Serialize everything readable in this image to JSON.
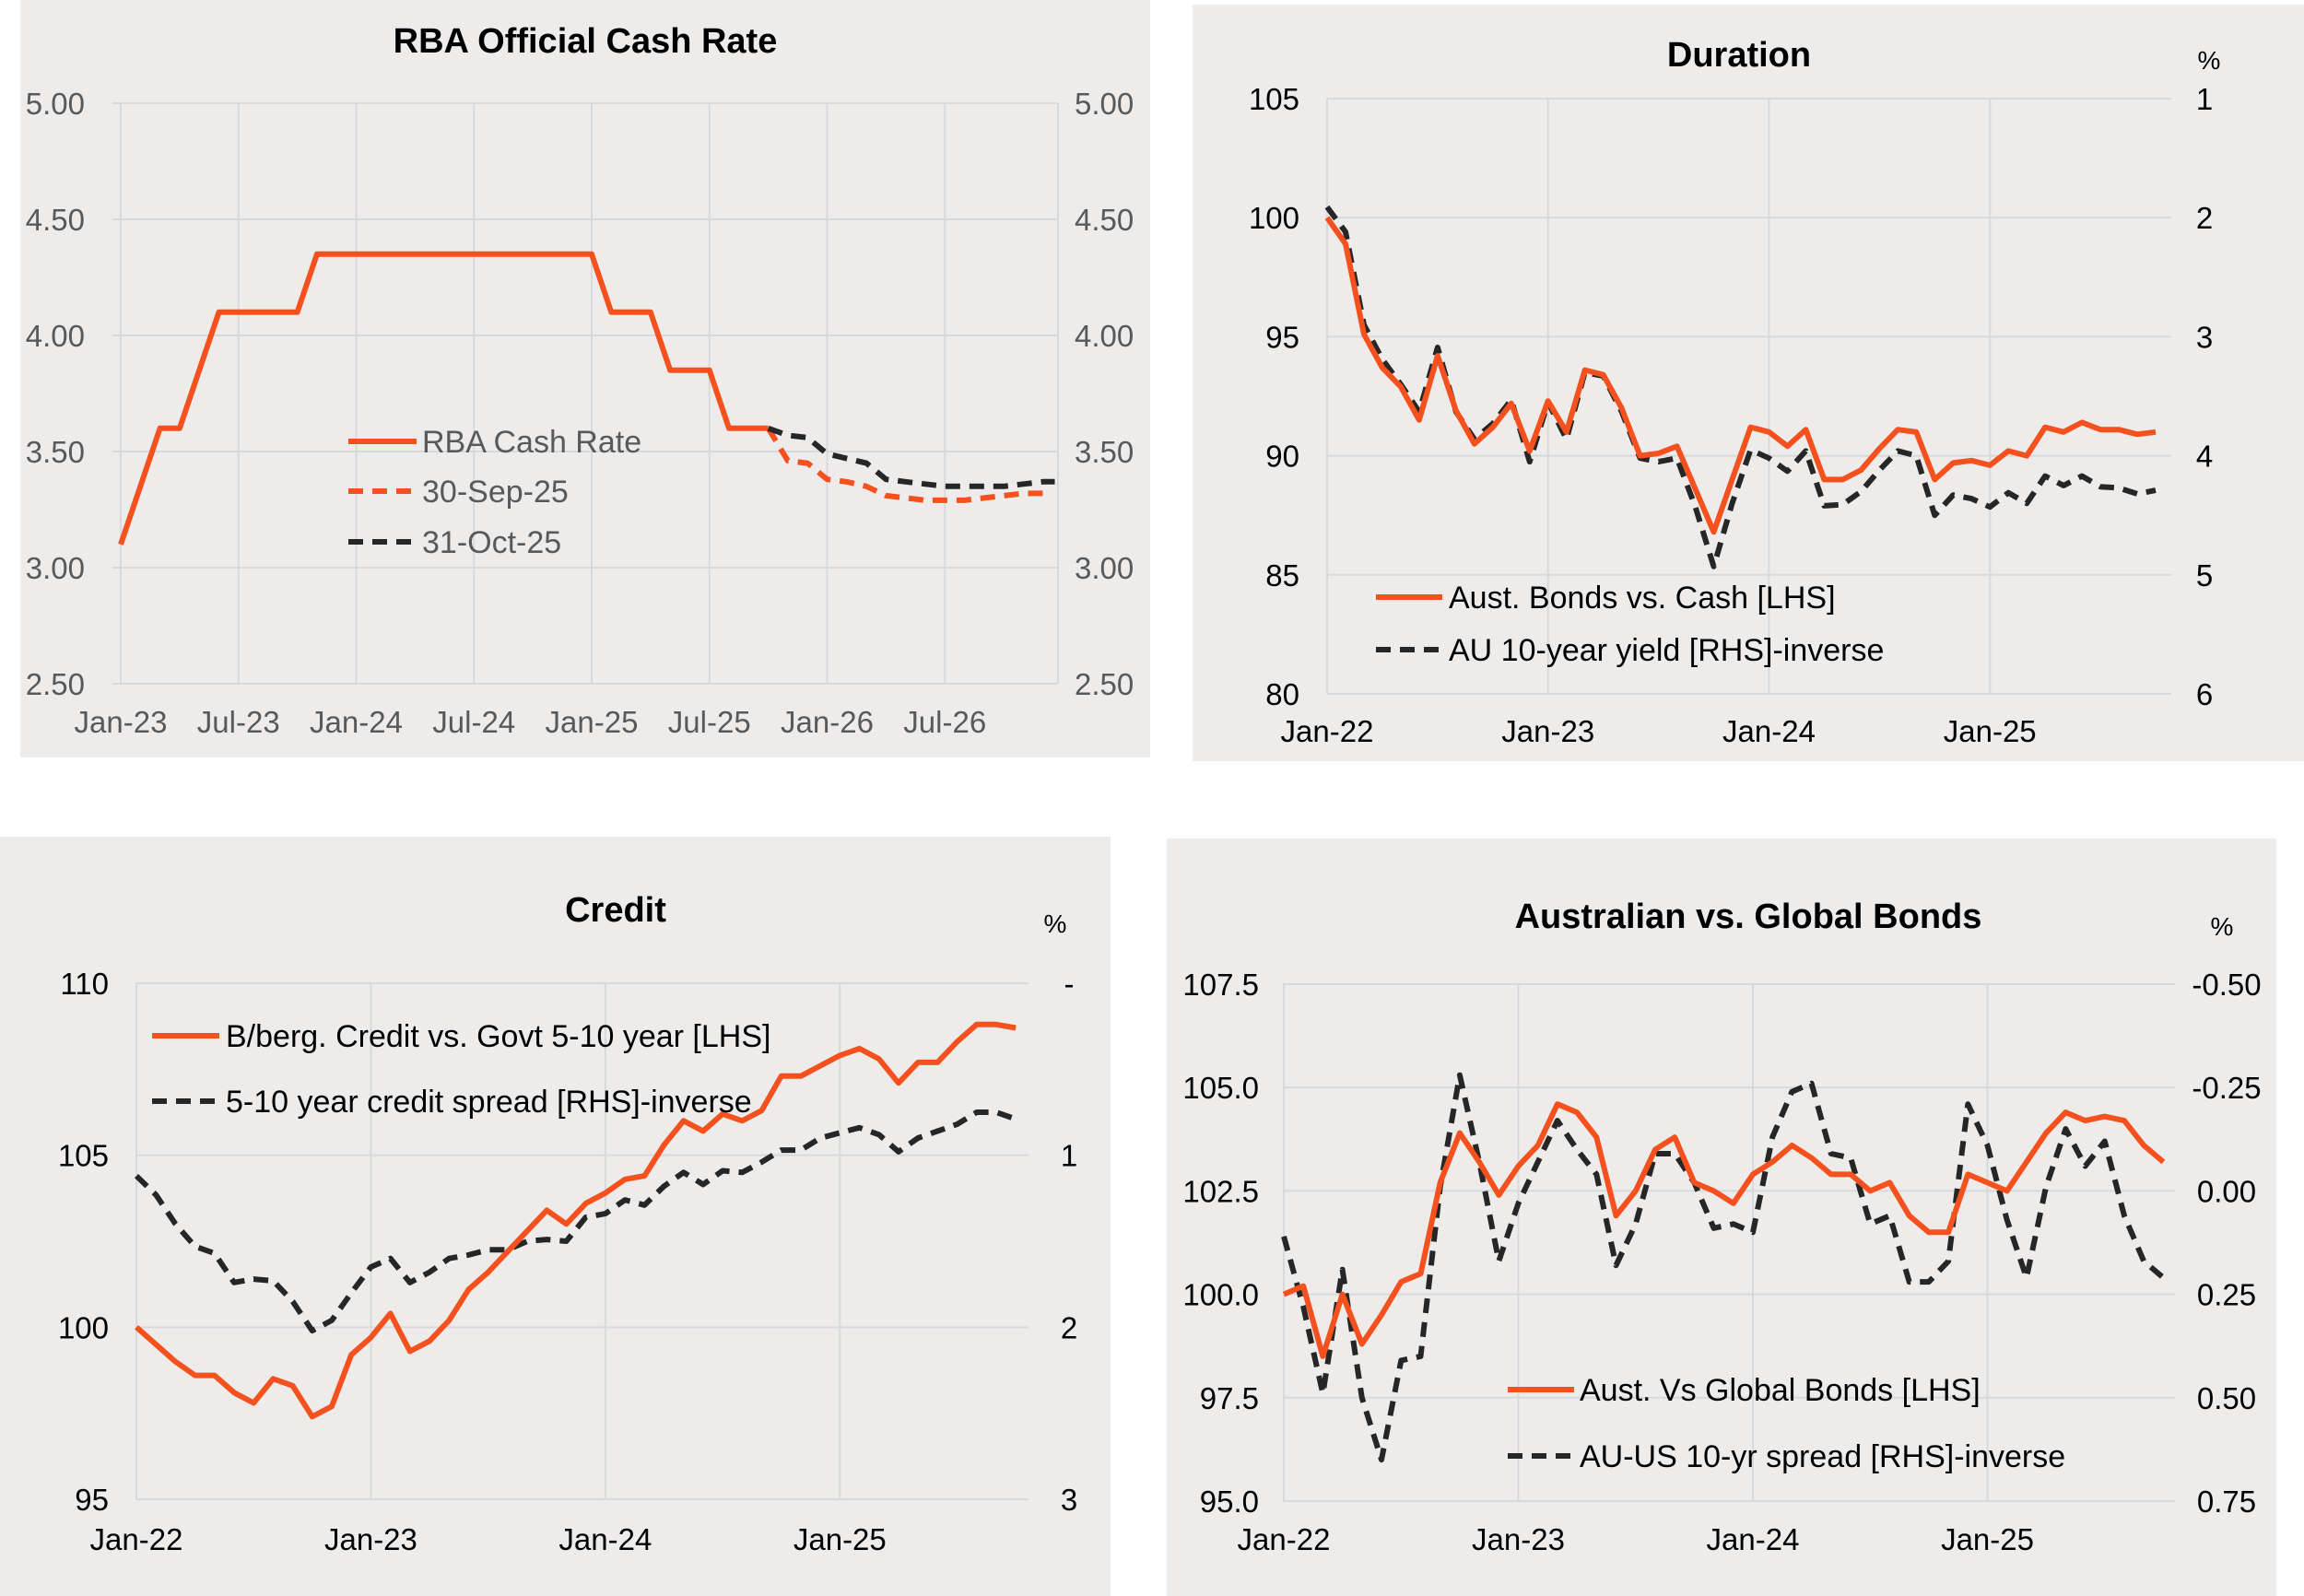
{
  "colors": {
    "orange": "#f4511e",
    "black": "#262626",
    "panel_bg": "#eeeceb",
    "grid": "#d9d9d9"
  },
  "chart_data": [
    {
      "id": "rba",
      "type": "line",
      "title": "RBA Official Cash Rate",
      "xlabel": "",
      "ylabel": "",
      "x_ticks": [
        "Jan-23",
        "Jul-23",
        "Jan-24",
        "Jul-24",
        "Jan-25",
        "Jul-25",
        "Jan-26",
        "Jul-26"
      ],
      "x_tick_months": [
        0,
        6,
        12,
        18,
        24,
        30,
        36,
        42
      ],
      "x_start": "Jan-23",
      "x_range_months": [
        0,
        48
      ],
      "ylim": [
        2.5,
        5.0
      ],
      "y_ticks": [
        "5.00",
        "4.50",
        "4.00",
        "3.50",
        "3.00",
        "2.50"
      ],
      "y_tick_values": [
        5.0,
        4.5,
        4.0,
        3.5,
        3.0,
        2.5
      ],
      "y2_ticks": [
        "5.00",
        "4.50",
        "4.00",
        "3.50",
        "3.00",
        "2.50"
      ],
      "grid": true,
      "legend": "center",
      "series": [
        {
          "name": "RBA Cash Rate",
          "style": "solid",
          "color": "#f4511e",
          "months": [
            0,
            1,
            2,
            3,
            4,
            5,
            6,
            7,
            8,
            9,
            10,
            11,
            12,
            13,
            14,
            15,
            16,
            17,
            18,
            19,
            20,
            21,
            22,
            23,
            24,
            25,
            26,
            27,
            28,
            29,
            30,
            31,
            32,
            33
          ],
          "values": [
            3.1,
            3.35,
            3.6,
            3.6,
            3.85,
            4.1,
            4.1,
            4.1,
            4.1,
            4.1,
            4.35,
            4.35,
            4.35,
            4.35,
            4.35,
            4.35,
            4.35,
            4.35,
            4.35,
            4.35,
            4.35,
            4.35,
            4.35,
            4.35,
            4.35,
            4.1,
            4.1,
            4.1,
            3.85,
            3.85,
            3.85,
            3.6,
            3.6,
            3.6
          ]
        },
        {
          "name": "30-Sep-25",
          "style": "dashed",
          "color": "#f4511e",
          "months": [
            33,
            34,
            35,
            36,
            37,
            38,
            39,
            40,
            41,
            42,
            43,
            44,
            45,
            46,
            47
          ],
          "values": [
            3.6,
            3.46,
            3.45,
            3.38,
            3.37,
            3.35,
            3.31,
            3.3,
            3.29,
            3.29,
            3.29,
            3.3,
            3.31,
            3.32,
            3.32
          ]
        },
        {
          "name": "31-Oct-25",
          "style": "dashed",
          "color": "#262626",
          "months": [
            33,
            34,
            35,
            36,
            37,
            38,
            39,
            40,
            41,
            42,
            43,
            44,
            45,
            46,
            47,
            47.6
          ],
          "values": [
            3.6,
            3.57,
            3.56,
            3.49,
            3.47,
            3.45,
            3.38,
            3.37,
            3.36,
            3.35,
            3.35,
            3.35,
            3.35,
            3.36,
            3.37,
            3.37
          ]
        }
      ]
    },
    {
      "id": "duration",
      "type": "line",
      "title": "Duration",
      "y2_unit": "%",
      "x_ticks": [
        "Jan-22",
        "Jan-23",
        "Jan-24",
        "Jan-25"
      ],
      "x_tick_months": [
        0,
        12,
        24,
        36
      ],
      "x_start": "Jan-22",
      "x_range_months": [
        0,
        45.5
      ],
      "ylim": [
        80,
        105
      ],
      "y_ticks": [
        "105",
        "100",
        "95",
        "90",
        "85",
        "80"
      ],
      "y_tick_values": [
        105,
        100,
        95,
        90,
        85,
        80
      ],
      "y2lim": [
        1,
        6
      ],
      "y2_inverted": true,
      "y2_ticks": [
        "1",
        "2",
        "3",
        "4",
        "5",
        "6"
      ],
      "grid": true,
      "legend": "bottom-left",
      "series": [
        {
          "name": "Aust. Bonds vs. Cash [LHS]",
          "axis": "left",
          "style": "solid",
          "color": "#f4511e",
          "values": [
            100.0,
            98.9,
            95.1,
            93.7,
            92.9,
            91.5,
            94.2,
            91.9,
            90.5,
            91.2,
            92.2,
            90.2,
            92.3,
            91.0,
            93.6,
            93.4,
            92.0,
            90.0,
            90.1,
            90.4,
            88.6,
            86.8,
            89.0,
            91.2,
            91.0,
            90.4,
            91.1,
            89.0,
            89.0,
            89.4,
            90.3,
            91.1,
            91.0,
            89.0,
            89.7,
            89.8,
            89.6,
            90.2,
            90.0,
            91.2,
            91.0,
            91.4,
            91.1,
            91.1,
            90.9,
            91.0
          ]
        },
        {
          "name": "AU 10-year yield [RHS]-inverse",
          "axis": "right",
          "style": "dashed",
          "color": "#262626",
          "values": [
            1.91,
            2.12,
            2.9,
            3.19,
            3.4,
            3.63,
            3.09,
            3.63,
            3.86,
            3.73,
            3.53,
            4.05,
            3.55,
            3.86,
            3.3,
            3.33,
            3.63,
            4.02,
            4.05,
            4.02,
            4.43,
            4.93,
            4.4,
            3.95,
            4.02,
            4.13,
            3.96,
            4.42,
            4.41,
            4.3,
            4.12,
            3.96,
            4.0,
            4.5,
            4.33,
            4.36,
            4.43,
            4.31,
            4.4,
            4.17,
            4.25,
            4.17,
            4.26,
            4.27,
            4.32,
            4.29
          ]
        }
      ]
    },
    {
      "id": "credit",
      "type": "line",
      "title": "Credit",
      "y2_unit": "%",
      "x_ticks": [
        "Jan-22",
        "Jan-23",
        "Jan-24",
        "Jan-25"
      ],
      "x_tick_months": [
        0,
        12,
        24,
        36
      ],
      "x_start": "Jan-22",
      "x_range_months": [
        0,
        45.7
      ],
      "ylim": [
        95,
        110
      ],
      "y_ticks": [
        "110",
        "105",
        "100",
        "95"
      ],
      "y_tick_values": [
        110,
        105,
        100,
        95
      ],
      "y2lim": [
        0,
        3
      ],
      "y2_inverted": true,
      "y2_ticks": [
        "-",
        "1",
        "2",
        "3"
      ],
      "grid": true,
      "legend": "top-left",
      "series": [
        {
          "name": "B/berg. Credit vs. Govt 5-10 year [LHS]",
          "axis": "left",
          "style": "solid",
          "color": "#f4511e",
          "values": [
            100.0,
            99.5,
            99.0,
            98.6,
            98.6,
            98.1,
            97.8,
            98.5,
            98.3,
            97.4,
            97.7,
            99.2,
            99.7,
            100.4,
            99.3,
            99.6,
            100.2,
            101.1,
            101.6,
            102.2,
            102.8,
            103.4,
            103.0,
            103.6,
            103.9,
            104.3,
            104.4,
            105.3,
            106.0,
            105.7,
            106.2,
            106.0,
            106.3,
            107.3,
            107.3,
            107.6,
            107.9,
            108.1,
            107.8,
            107.1,
            107.7,
            107.7,
            108.3,
            108.8,
            108.8,
            108.7
          ]
        },
        {
          "name": "5-10 year credit spread [RHS]-inverse",
          "axis": "right",
          "style": "dashed",
          "color": "#262626",
          "values": [
            1.12,
            1.23,
            1.4,
            1.53,
            1.57,
            1.74,
            1.72,
            1.73,
            1.85,
            2.02,
            1.96,
            1.8,
            1.65,
            1.6,
            1.74,
            1.68,
            1.6,
            1.58,
            1.55,
            1.55,
            1.5,
            1.49,
            1.5,
            1.36,
            1.34,
            1.26,
            1.29,
            1.18,
            1.1,
            1.17,
            1.09,
            1.1,
            1.04,
            0.97,
            0.97,
            0.9,
            0.87,
            0.84,
            0.88,
            0.98,
            0.9,
            0.86,
            0.82,
            0.75,
            0.75,
            0.79
          ]
        }
      ]
    },
    {
      "id": "global",
      "type": "line",
      "title": "Australian vs. Global Bonds",
      "y2_unit": "%",
      "x_ticks": [
        "Jan-22",
        "Jan-23",
        "Jan-24",
        "Jan-25"
      ],
      "x_tick_months": [
        0,
        12,
        24,
        36
      ],
      "x_start": "Jan-22",
      "x_range_months": [
        0,
        45.5
      ],
      "ylim": [
        95.0,
        107.5
      ],
      "y_ticks": [
        "107.5",
        "105.0",
        "102.5",
        "100.0",
        "97.5",
        "95.0"
      ],
      "y_tick_values": [
        107.5,
        105.0,
        102.5,
        100.0,
        97.5,
        95.0
      ],
      "y2lim": [
        -0.5,
        0.75
      ],
      "y2_inverted": true,
      "y2_ticks": [
        "-0.50",
        "-0.25",
        "0.00",
        "0.25",
        "0.50",
        "0.75"
      ],
      "grid": true,
      "legend": "bottom-center",
      "series": [
        {
          "name": "Aust. Vs Global Bonds [LHS]",
          "axis": "left",
          "style": "solid",
          "color": "#f4511e",
          "values": [
            100.0,
            100.2,
            98.5,
            100.0,
            98.8,
            99.5,
            100.3,
            100.5,
            102.7,
            103.9,
            103.2,
            102.4,
            103.1,
            103.6,
            104.6,
            104.4,
            103.8,
            101.9,
            102.5,
            103.5,
            103.8,
            102.7,
            102.5,
            102.2,
            102.9,
            103.2,
            103.6,
            103.3,
            102.9,
            102.9,
            102.5,
            102.7,
            101.9,
            101.5,
            101.5,
            102.9,
            102.7,
            102.5,
            103.2,
            103.9,
            104.4,
            104.2,
            104.3,
            104.2,
            103.6,
            103.2
          ]
        },
        {
          "name": "AU-US 10-yr spread [RHS]-inverse",
          "axis": "right",
          "style": "dashed",
          "color": "#262626",
          "values": [
            0.11,
            0.28,
            0.49,
            0.19,
            0.5,
            0.65,
            0.41,
            0.4,
            -0.01,
            -0.28,
            -0.07,
            0.17,
            0.03,
            -0.07,
            -0.17,
            -0.1,
            -0.04,
            0.18,
            0.08,
            -0.09,
            -0.09,
            -0.02,
            0.09,
            0.08,
            0.1,
            -0.13,
            -0.24,
            -0.26,
            -0.09,
            -0.08,
            0.08,
            0.06,
            0.22,
            0.22,
            0.17,
            -0.21,
            -0.11,
            0.07,
            0.21,
            -0.01,
            -0.15,
            -0.06,
            -0.12,
            0.06,
            0.17,
            0.21
          ]
        }
      ]
    }
  ]
}
